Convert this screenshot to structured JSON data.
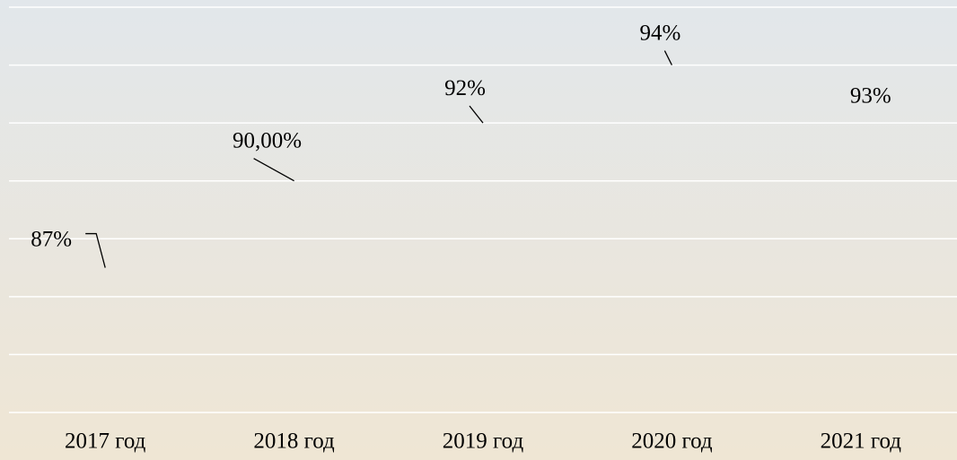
{
  "chart_data": {
    "type": "line",
    "categories": [
      "2017 год",
      "2018 год",
      "2019 год",
      "2020 год",
      "2021 год"
    ],
    "series": [
      {
        "name": null,
        "color": "#f4a62a",
        "values": [
          87,
          90,
          92,
          94,
          93
        ],
        "value_labels": [
          "87%",
          "90,00%",
          "92%",
          "94%",
          "93%"
        ]
      }
    ],
    "ylim": [
      82,
      96
    ],
    "yticks": [
      82,
      84,
      86,
      88,
      90,
      92,
      94,
      96
    ],
    "grid": true
  }
}
